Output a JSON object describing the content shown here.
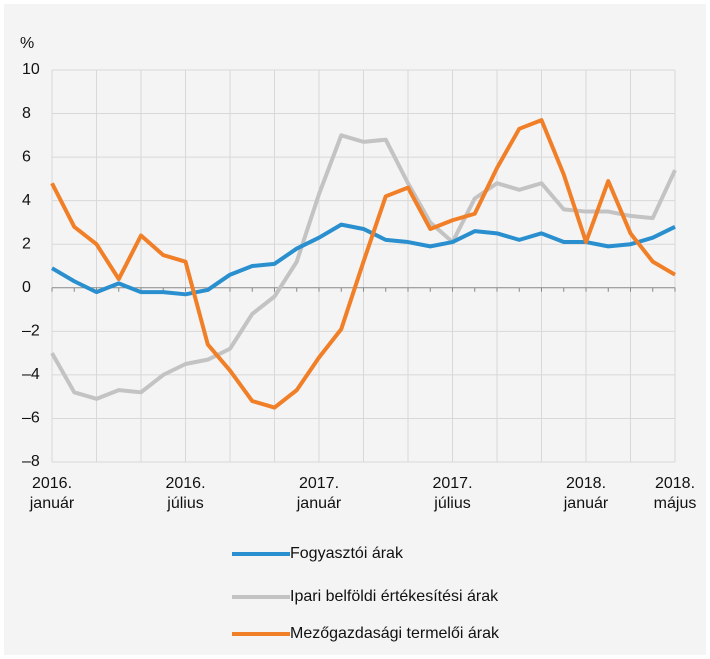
{
  "chart_data": {
    "type": "line",
    "y_axis_label": "%",
    "categories": [
      "2016. január",
      null,
      null,
      null,
      null,
      null,
      "2016. július",
      null,
      null,
      null,
      null,
      null,
      "2017. január",
      null,
      null,
      null,
      null,
      null,
      "2017. július",
      null,
      null,
      null,
      null,
      null,
      "2018. január",
      null,
      null,
      null,
      "2018. május"
    ],
    "series": [
      {
        "name": "Fogyasztói árak",
        "color": "#2a8fce",
        "values": [
          0.9,
          0.3,
          -0.2,
          0.2,
          -0.2,
          -0.2,
          -0.3,
          -0.1,
          0.6,
          1.0,
          1.1,
          1.8,
          2.3,
          2.9,
          2.7,
          2.2,
          2.1,
          1.9,
          2.1,
          2.6,
          2.5,
          2.2,
          2.5,
          2.1,
          2.1,
          1.9,
          2.0,
          2.3,
          2.8
        ]
      },
      {
        "name": "Ipari belföldi értékesítési árak",
        "color": "#c3c3c3",
        "values": [
          -3.0,
          -4.8,
          -5.1,
          -4.7,
          -4.8,
          -4.0,
          -3.5,
          -3.3,
          -2.8,
          -1.2,
          -0.4,
          1.2,
          4.3,
          7.0,
          6.7,
          6.8,
          4.8,
          3.0,
          2.1,
          4.1,
          4.8,
          4.5,
          4.8,
          3.6,
          3.5,
          3.5,
          3.3,
          3.2,
          5.4
        ]
      },
      {
        "name": "Mezőgazdasági termelői árak",
        "color": "#f07f28",
        "values": [
          4.8,
          2.8,
          2.0,
          0.4,
          2.4,
          1.5,
          1.2,
          -2.6,
          -3.8,
          -5.2,
          -5.5,
          -4.7,
          -3.2,
          -1.9,
          1.2,
          4.2,
          4.6,
          2.7,
          3.1,
          3.4,
          5.5,
          7.3,
          7.7,
          5.2,
          2.1,
          4.9,
          2.5,
          1.2,
          0.6
        ]
      }
    ],
    "ylim": [
      -8,
      10
    ],
    "yticks": [
      {
        "value": -8,
        "label": "–8"
      },
      {
        "value": -6,
        "label": "–6"
      },
      {
        "value": -4,
        "label": "–4"
      },
      {
        "value": -2,
        "label": "–2"
      },
      0,
      2,
      4,
      6,
      8,
      10
    ],
    "grid": true
  }
}
